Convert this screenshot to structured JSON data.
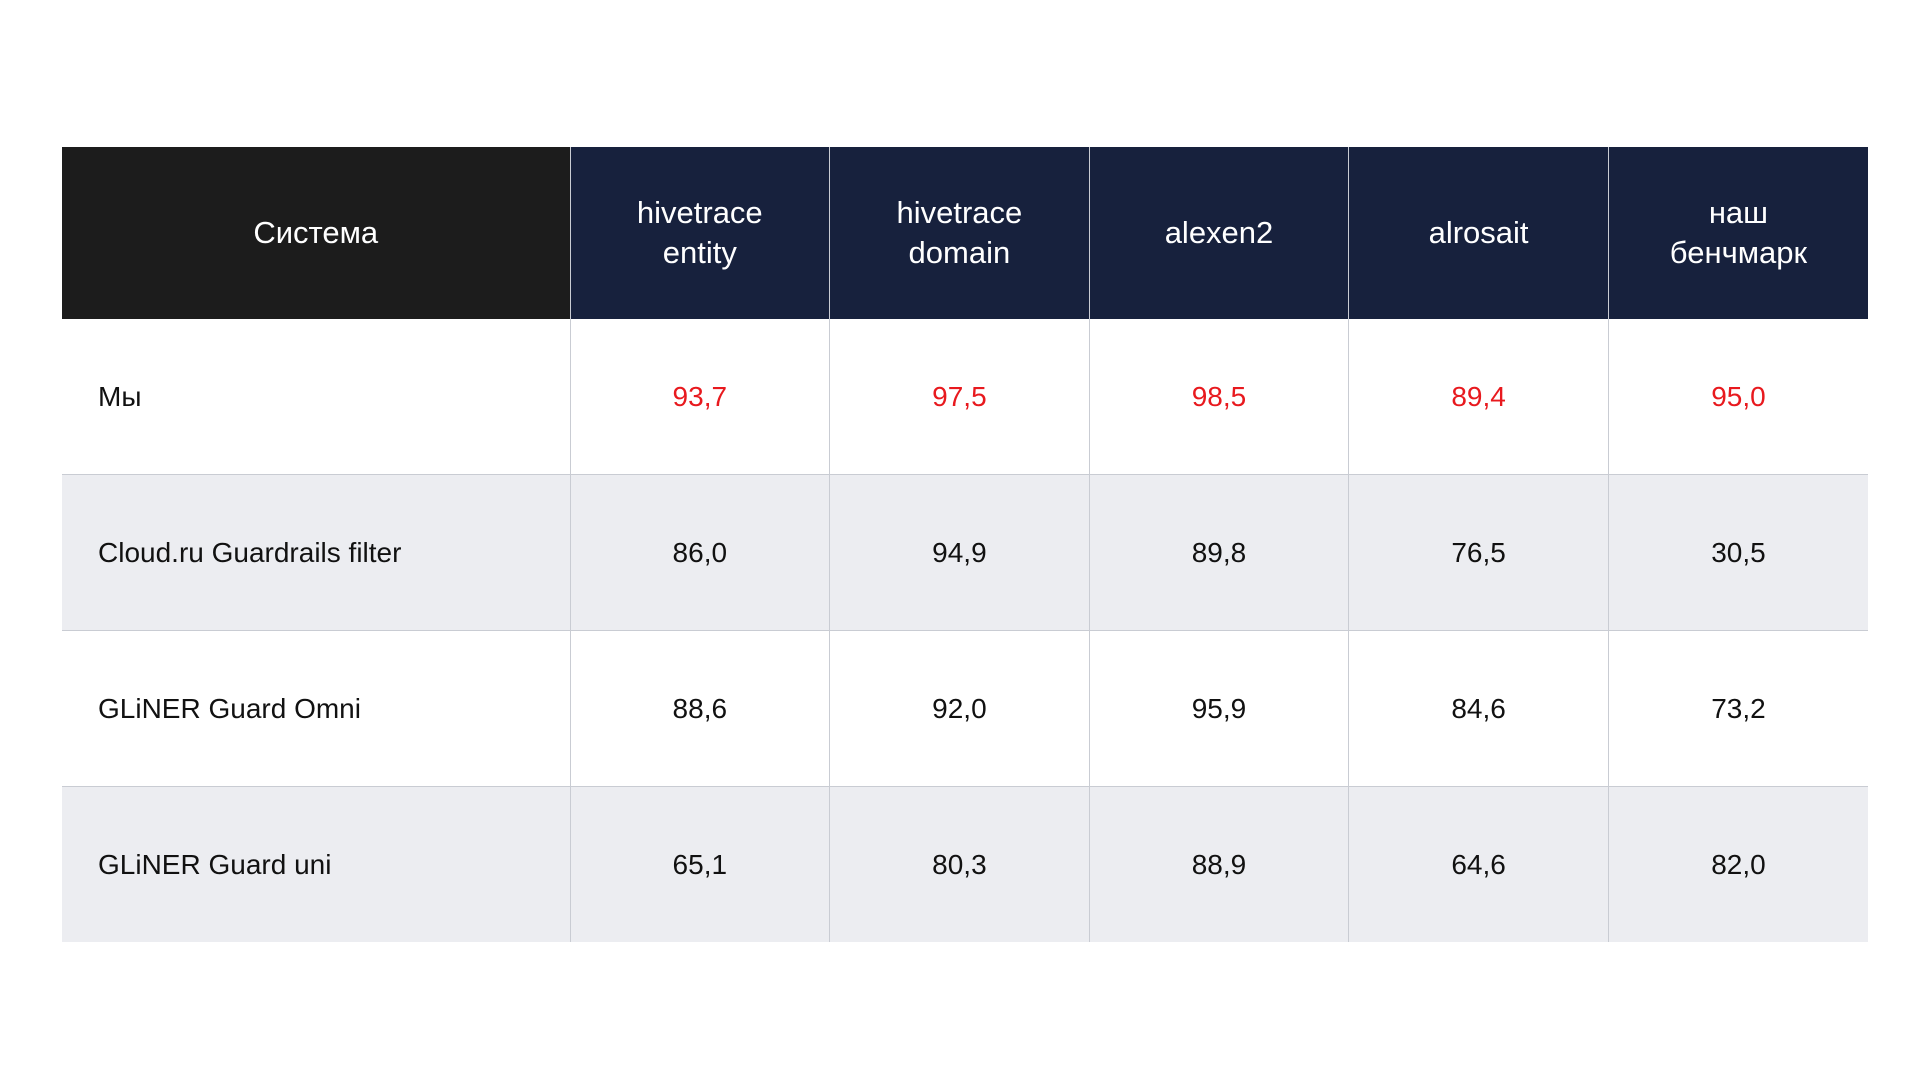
{
  "colors": {
    "header_first_bg": "#1c1c1c",
    "header_bg": "#17213d",
    "header_text": "#ffffff",
    "highlight_text": "#e8191e",
    "alt_row_bg": "#ecedf1",
    "grid_line": "#c9ccd3"
  },
  "table": {
    "header": {
      "system": "Система",
      "columns": [
        {
          "line1": "hivetrace",
          "line2": "entity"
        },
        {
          "line1": "hivetrace",
          "line2": "domain"
        },
        {
          "line1": "alexen2",
          "line2": ""
        },
        {
          "line1": "alrosait",
          "line2": ""
        },
        {
          "line1": "наш",
          "line2": "бенчмарк"
        }
      ]
    },
    "rows": [
      {
        "name": "Мы",
        "values": [
          "93,7",
          "97,5",
          "98,5",
          "89,4",
          "95,0"
        ],
        "highlighted": true
      },
      {
        "name": "Cloud.ru Guardrails filter",
        "values": [
          "86,0",
          "94,9",
          "89,8",
          "76,5",
          "30,5"
        ],
        "highlighted": false
      },
      {
        "name": "GLiNER Guard Omni",
        "values": [
          "88,6",
          "92,0",
          "95,9",
          "84,6",
          "73,2"
        ],
        "highlighted": false
      },
      {
        "name": "GLiNER Guard uni",
        "values": [
          "65,1",
          "80,3",
          "88,9",
          "64,6",
          "82,0"
        ],
        "highlighted": false
      }
    ]
  }
}
